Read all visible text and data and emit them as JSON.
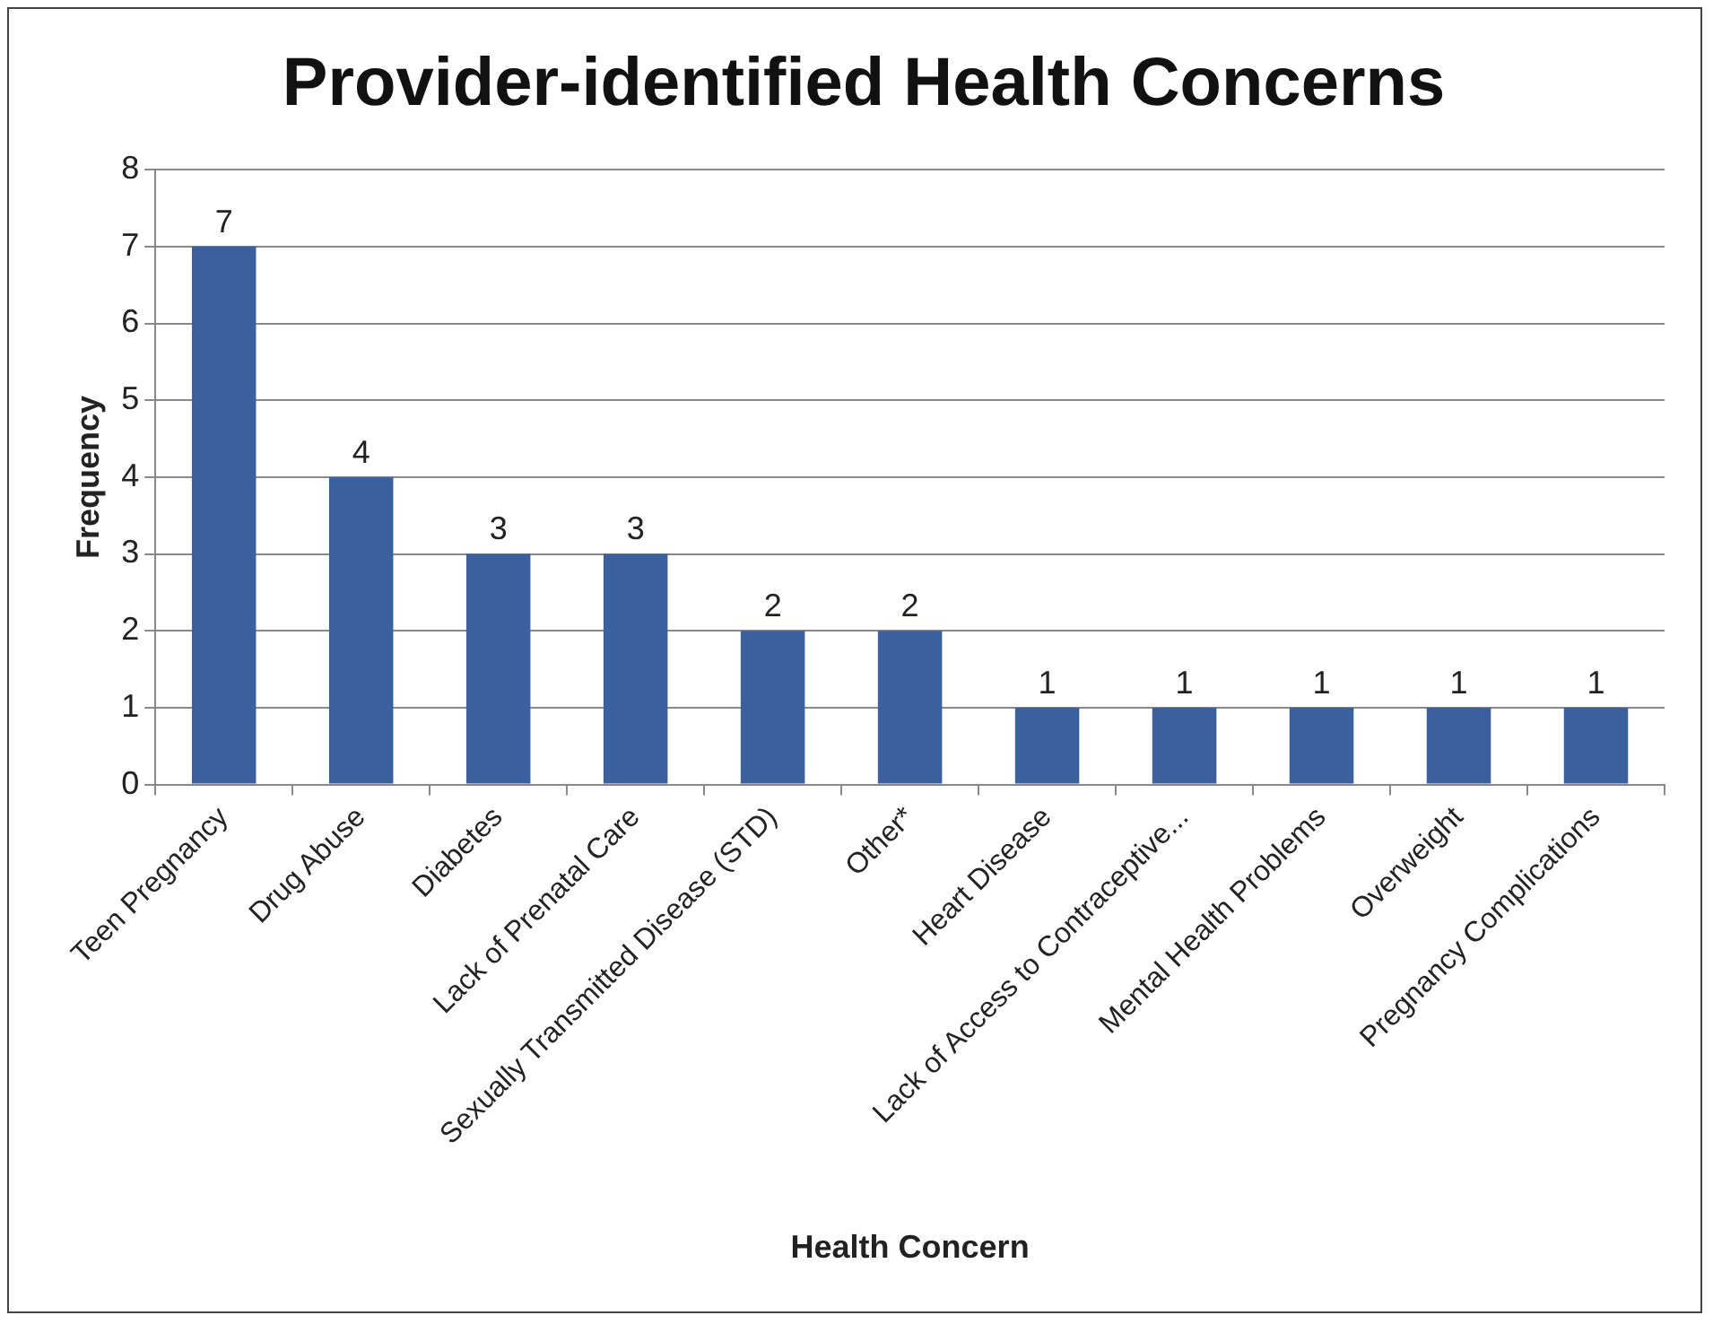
{
  "chart_data": {
    "type": "bar",
    "title": "Provider-identified Health Concerns",
    "xlabel": "Health Concern",
    "ylabel": "Frequency",
    "categories": [
      "Teen Pregnancy",
      "Drug Abuse",
      "Diabetes",
      "Lack of Prenatal Care",
      "Sexually Transmitted Disease (STD)",
      "Other*",
      "Heart Disease",
      "Lack of Access to Contraceptive...",
      "Mental Health Problems",
      "Overweight",
      "Pregnancy Complications"
    ],
    "values": [
      7,
      4,
      3,
      3,
      2,
      2,
      1,
      1,
      1,
      1,
      1
    ],
    "color": "#3c5f9e",
    "ylim": [
      0,
      8
    ],
    "yticks": [
      0,
      1,
      2,
      3,
      4,
      5,
      6,
      7,
      8
    ],
    "grid": "y",
    "data_labels": true,
    "legend": false
  }
}
